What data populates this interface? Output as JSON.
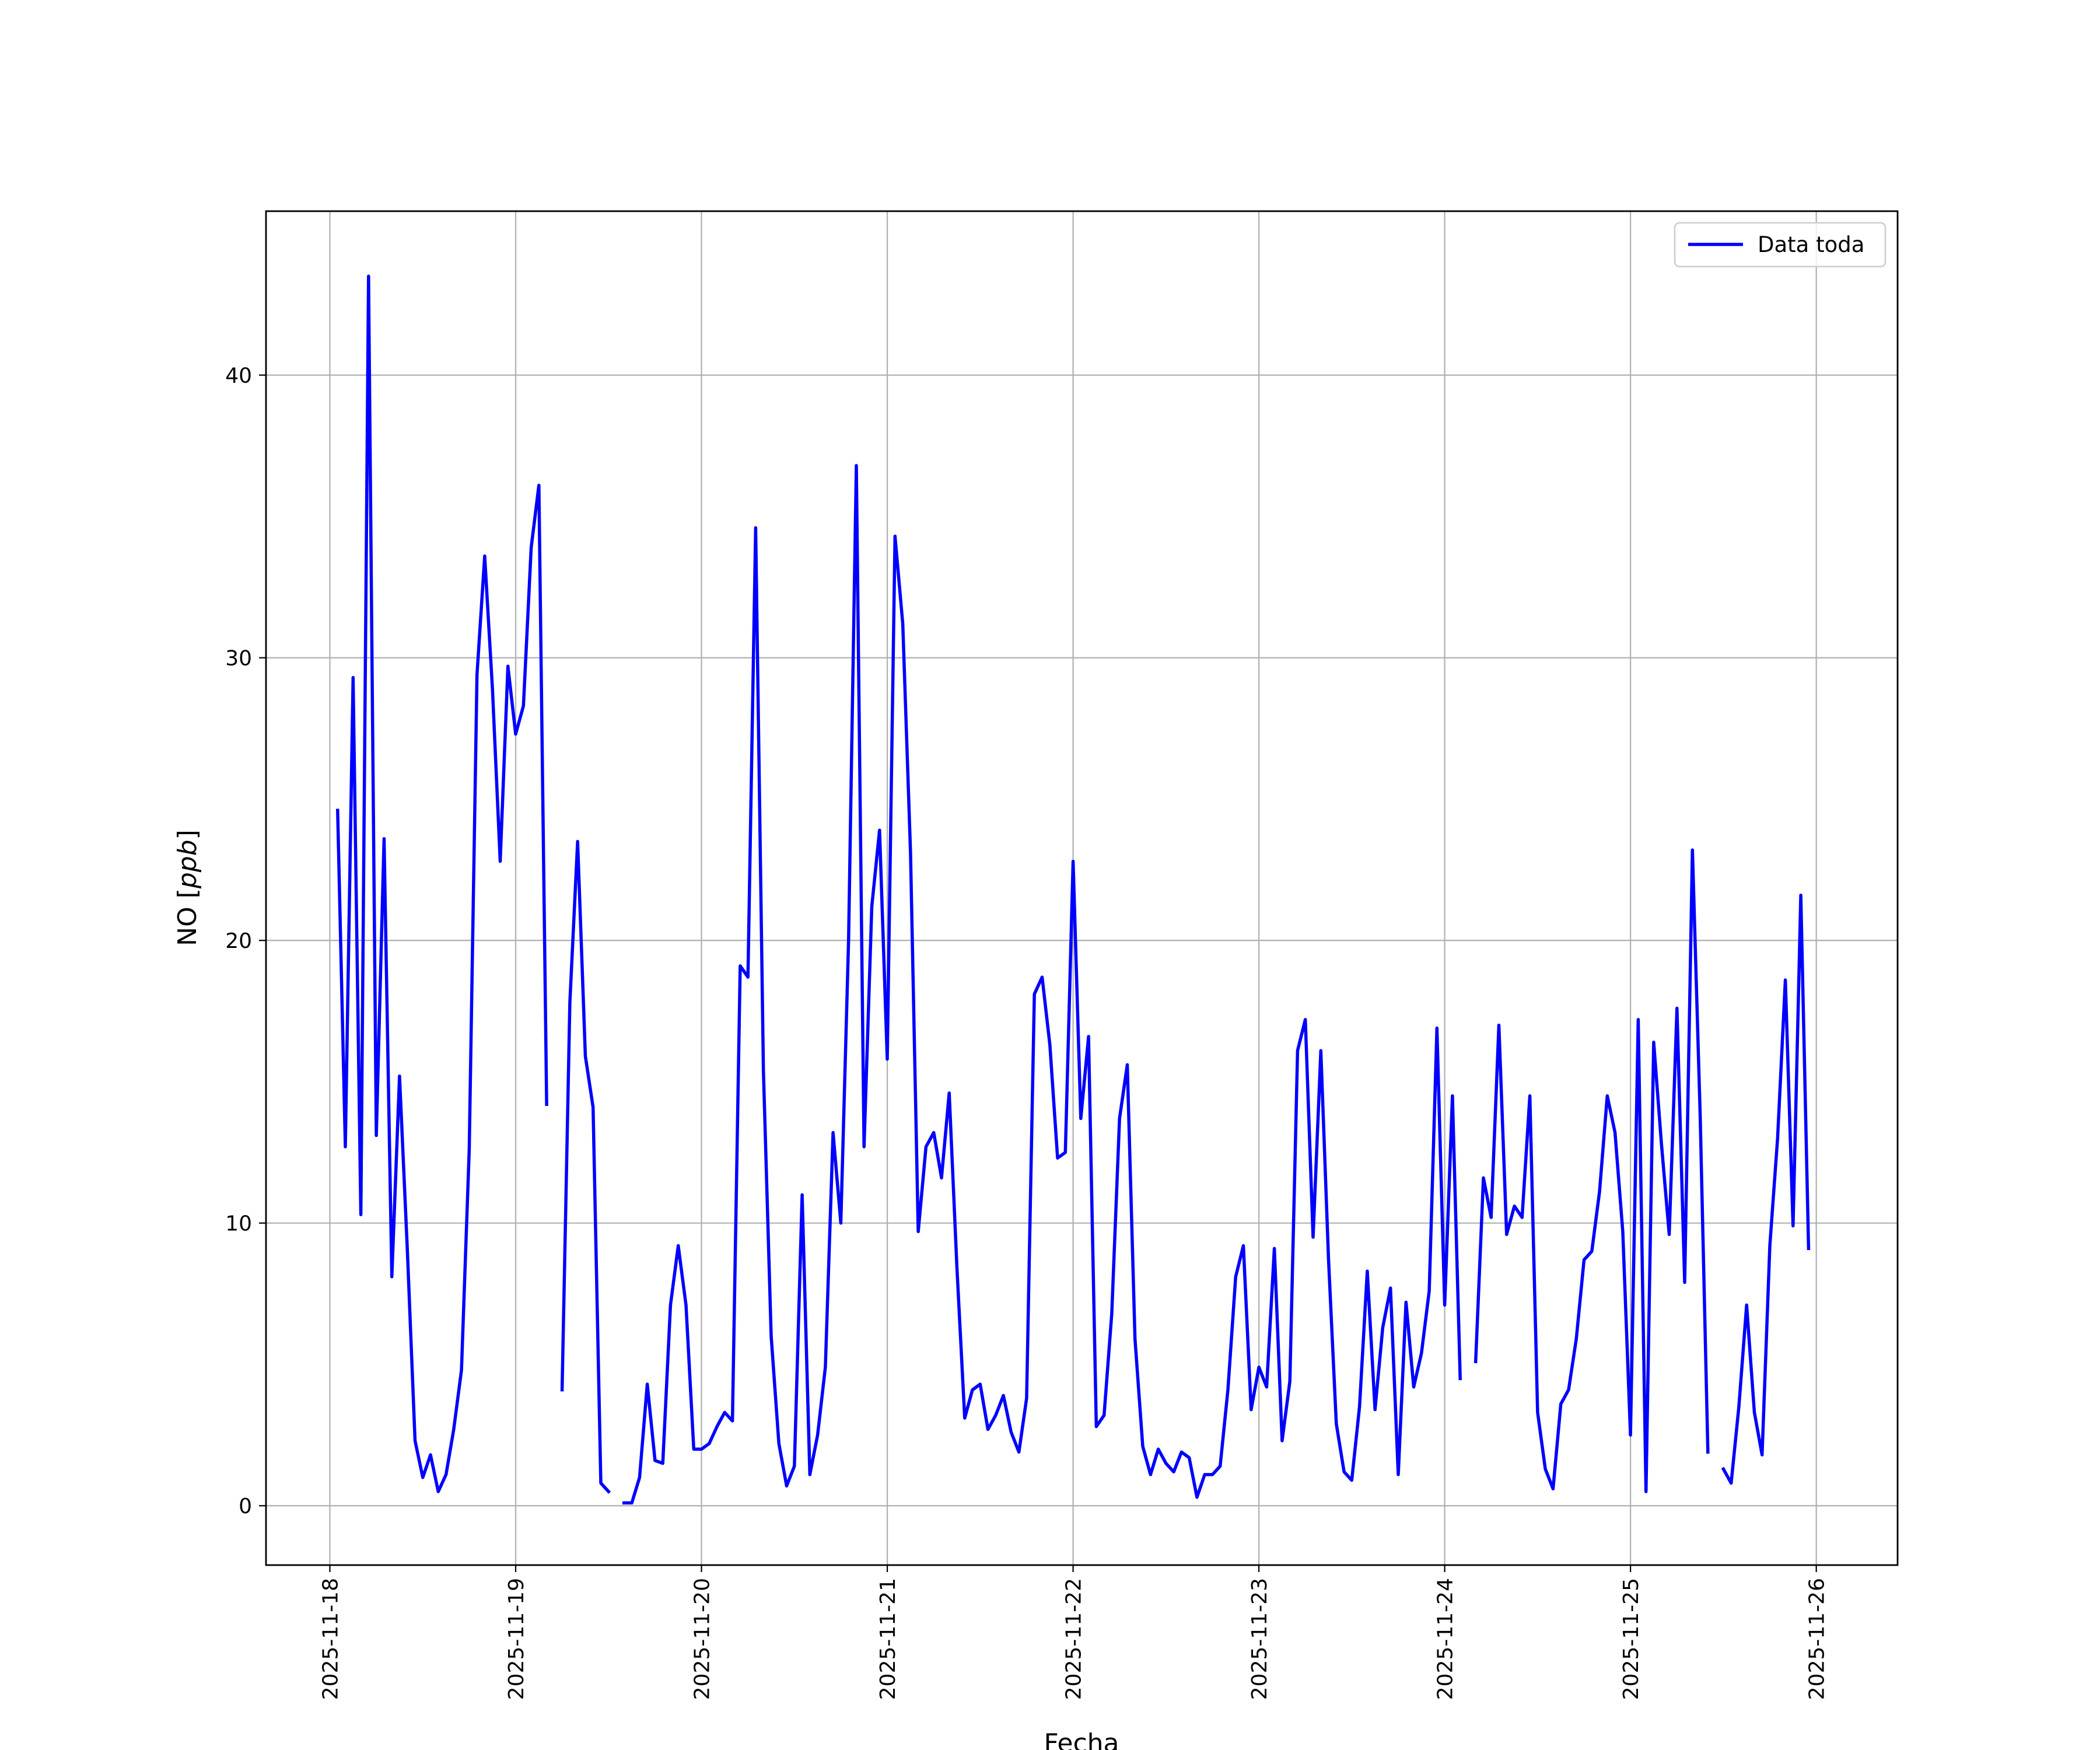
{
  "chart_data": {
    "type": "line",
    "xlabel": "Fecha",
    "ylabel_text": "NO",
    "ylabel_unit": "ppb",
    "ylim": [
      -2.1,
      45.8
    ],
    "xlim": [
      "2025-11-17T15:45",
      "2025-11-26T10:30"
    ],
    "yticks": [
      0,
      10,
      20,
      30,
      40
    ],
    "xticks": [
      "2025-11-18",
      "2025-11-19",
      "2025-11-20",
      "2025-11-21",
      "2025-11-22",
      "2025-11-23",
      "2025-11-24",
      "2025-11-25",
      "2025-11-26"
    ],
    "grid": true,
    "legend": "top-right",
    "series": [
      {
        "name": "Data toda",
        "color": "#0000ff",
        "x_start": "2025-11-18T01:00",
        "x_step_hours": 1,
        "values": [
          24.6,
          12.7,
          29.3,
          10.3,
          43.5,
          13.1,
          23.6,
          8.1,
          15.2,
          9.1,
          2.3,
          1.0,
          1.8,
          0.5,
          1.1,
          2.7,
          4.8,
          12.6,
          29.4,
          33.6,
          28.9,
          22.8,
          29.7,
          27.3,
          28.3,
          33.9,
          36.1,
          14.2,
          null,
          4.1,
          17.8,
          23.5,
          15.9,
          14.1,
          0.8,
          0.5,
          null,
          0.1,
          0.1,
          1.0,
          4.3,
          1.6,
          1.5,
          7.1,
          9.2,
          7.1,
          2.0,
          2.0,
          2.2,
          2.8,
          3.3,
          3.0,
          19.1,
          18.7,
          34.6,
          15.4,
          6.0,
          2.2,
          0.7,
          1.4,
          11.0,
          1.1,
          2.5,
          4.9,
          13.2,
          10.0,
          20.0,
          36.8,
          12.7,
          21.2,
          23.9,
          15.8,
          34.3,
          31.2,
          23.1,
          9.7,
          12.7,
          13.2,
          11.6,
          14.6,
          8.4,
          3.1,
          4.1,
          4.3,
          2.7,
          3.2,
          3.9,
          2.6,
          1.9,
          3.8,
          18.1,
          18.7,
          16.3,
          12.3,
          12.5,
          22.8,
          13.7,
          16.6,
          2.8,
          3.2,
          6.8,
          13.7,
          15.6,
          5.9,
          2.1,
          1.1,
          2.0,
          1.5,
          1.2,
          1.9,
          1.7,
          0.3,
          1.1,
          1.1,
          1.4,
          4.1,
          8.1,
          9.2,
          3.4,
          4.9,
          4.2,
          9.1,
          2.3,
          4.4,
          16.1,
          17.2,
          9.5,
          16.1,
          8.7,
          2.9,
          1.2,
          0.9,
          3.5,
          8.3,
          3.4,
          6.3,
          7.7,
          1.1,
          7.2,
          4.2,
          5.4,
          7.6,
          16.9,
          7.1,
          14.5,
          4.5,
          null,
          5.1,
          11.6,
          10.2,
          17.0,
          9.6,
          10.6,
          10.2,
          14.5,
          3.3,
          1.3,
          0.6,
          3.6,
          4.1,
          5.9,
          8.7,
          9.0,
          11.1,
          14.5,
          13.2,
          9.7,
          2.5,
          17.2,
          0.5,
          16.4,
          12.8,
          9.6,
          17.6,
          7.9,
          23.2,
          13.8,
          1.9,
          null,
          1.3,
          0.8,
          3.5,
          7.1,
          3.3,
          1.8,
          9.2,
          13.0,
          18.6,
          9.9,
          21.6,
          9.1
        ]
      }
    ]
  }
}
